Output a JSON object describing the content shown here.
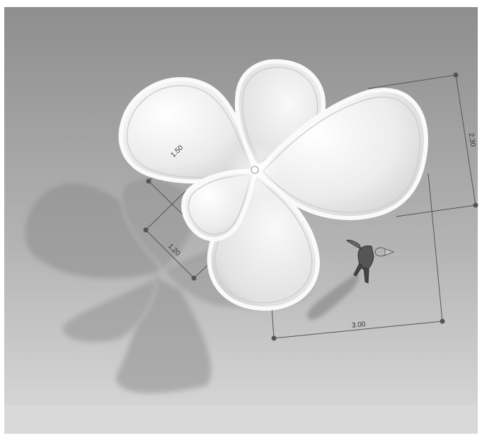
{
  "dimensions": {
    "petal_length": "1.50",
    "center_petal_width": "1.20",
    "overall_width": "3.00",
    "right_petal_height": "2.30"
  },
  "colors": {
    "background_top": "#8f8f8f",
    "background_bottom": "#d8d8d8",
    "frame": "#ffffff",
    "petal_fill": "#f1f1f1",
    "petal_rim": "#fbfbfb",
    "shadow": "#9a9a9a",
    "dimension_line": "#555555",
    "dimension_dot": "#555555"
  },
  "figure": {
    "icon": "person-figure-icon"
  }
}
